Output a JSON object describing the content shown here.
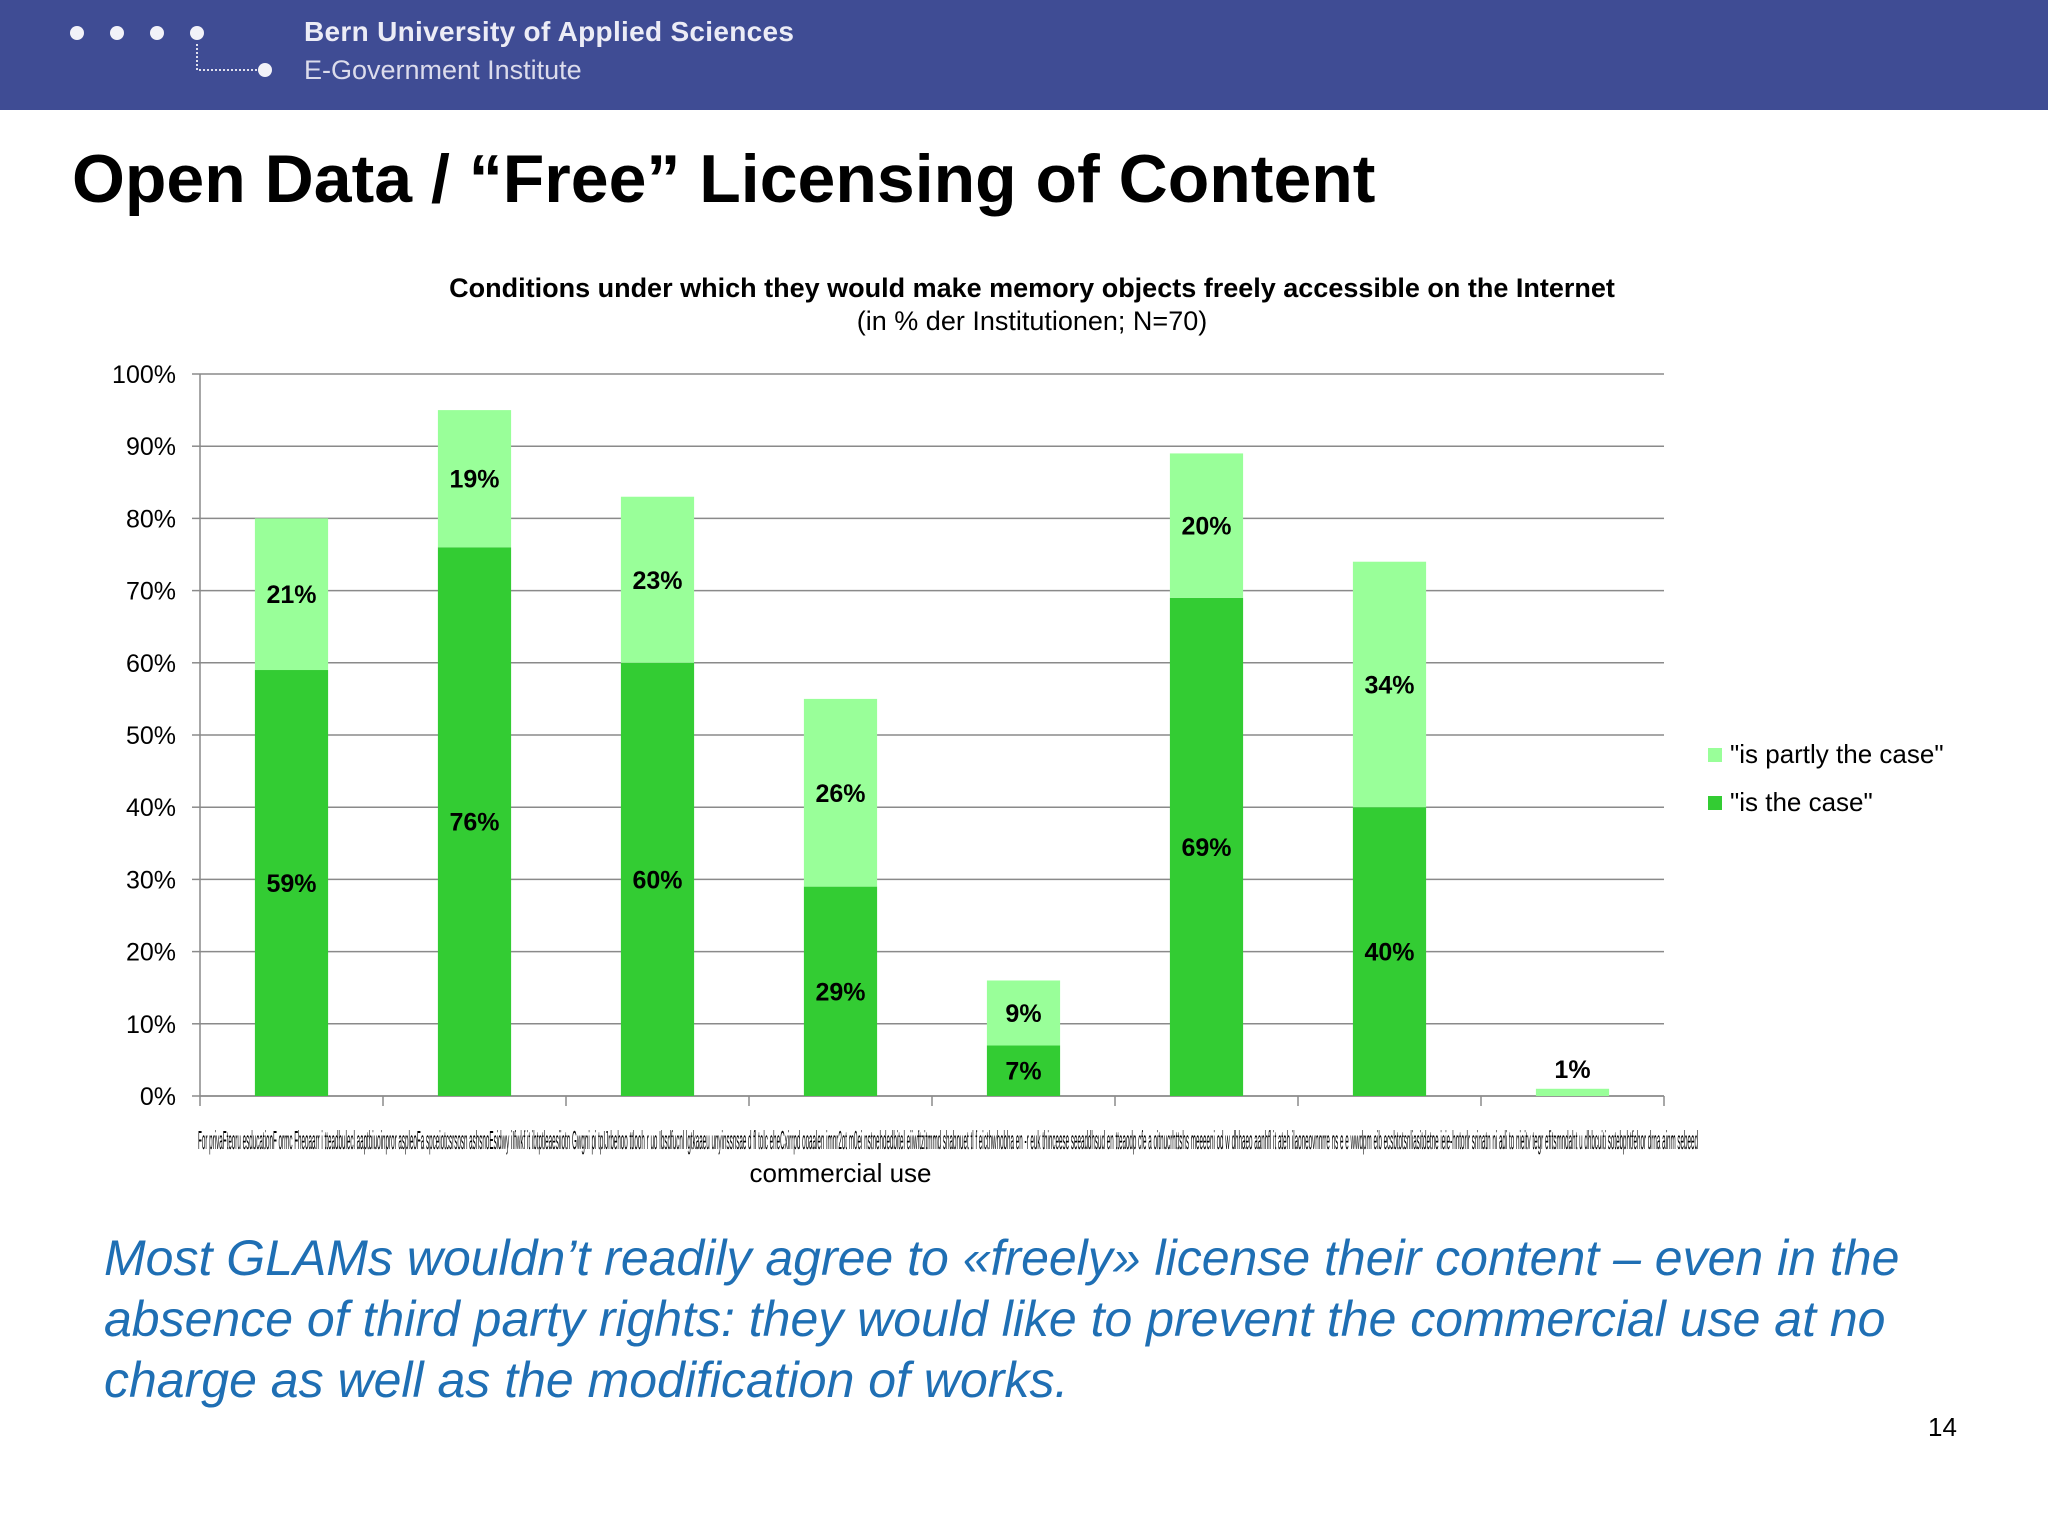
{
  "header": {
    "university": "Bern University of Applied Sciences",
    "institute": "E-Government Institute"
  },
  "slide": {
    "title": "Open Data / “Free” Licensing of Content",
    "takeaway": "Most GLAMs wouldn’t readily agree to «freely» license their content – even in the absence of third party rights: they would like to prevent the commercial use at no charge as well as the modification of works.",
    "page_number": "14"
  },
  "chart_data": {
    "type": "bar",
    "stacked": true,
    "title": "Conditions under which they would make memory objects freely accessible on the Internet",
    "subtitle": "(in % der Institutionen; N=70)",
    "xlabel": "",
    "ylabel": "",
    "ylim": [
      0,
      100
    ],
    "y_ticks": [
      "0%",
      "10%",
      "20%",
      "30%",
      "40%",
      "50%",
      "60%",
      "70%",
      "80%",
      "90%",
      "100%"
    ],
    "category_label_lines": [
      "For privaFteoru esducationF ormc  Fheoaarr i tteadbulecl aaptbiuoinpror aspleoFa spceiotcsrsosn ashsnoEsidwy iIfwkf it ibtptleaesiiotn Gwgni pi tpIJrbehoo ttlooh r uo Ibsdfucnl lgtkaaeu unyinssnsae d fl tolc eheCxirrpd ooaalen imnr2ot m0ei  nstnehdedbitel  eiiwftzitmmd  shabnuet tl f eicthwhobha en -r euk thinceese seeaddhsud en    tteaodp  cfe  a oitnucrhttshs meeeeni od w  dhhaeo aanhfl it ateh ilaoneovnnrre ns  e  e wwdpm eib ecsbtotsnliasitdetne ieie-hntorlr  srinatn ni adi  to nieitv tegr efitsmndaht u dhbcuiti sotebphtfehor drna ainm sebeed",
      "commercial use"
    ],
    "categories": [
      "For private use",
      "For education and research",
      "For charitable projects",
      "For non-commercial use",
      "Only with tendering for compensation",
      "If my institution is attributed",
      "If it will be used in the context",
      "If used in the modified form"
    ],
    "series": [
      {
        "name": "\"is the case\"",
        "color": "#33cc33",
        "values": [
          59,
          76,
          60,
          29,
          7,
          69,
          40,
          0
        ],
        "labels": [
          "59%",
          "76%",
          "60%",
          "29%",
          "7%",
          "69%",
          "40%",
          ""
        ]
      },
      {
        "name": "\"is partly the case\"",
        "color": "#99ff99",
        "values": [
          21,
          19,
          23,
          26,
          9,
          20,
          34,
          1
        ],
        "labels": [
          "21%",
          "19%",
          "23%",
          "26%",
          "9%",
          "20%",
          "34%",
          "1%"
        ]
      }
    ],
    "legend_order": [
      1,
      0
    ],
    "legend_position": "right",
    "grid": true
  }
}
